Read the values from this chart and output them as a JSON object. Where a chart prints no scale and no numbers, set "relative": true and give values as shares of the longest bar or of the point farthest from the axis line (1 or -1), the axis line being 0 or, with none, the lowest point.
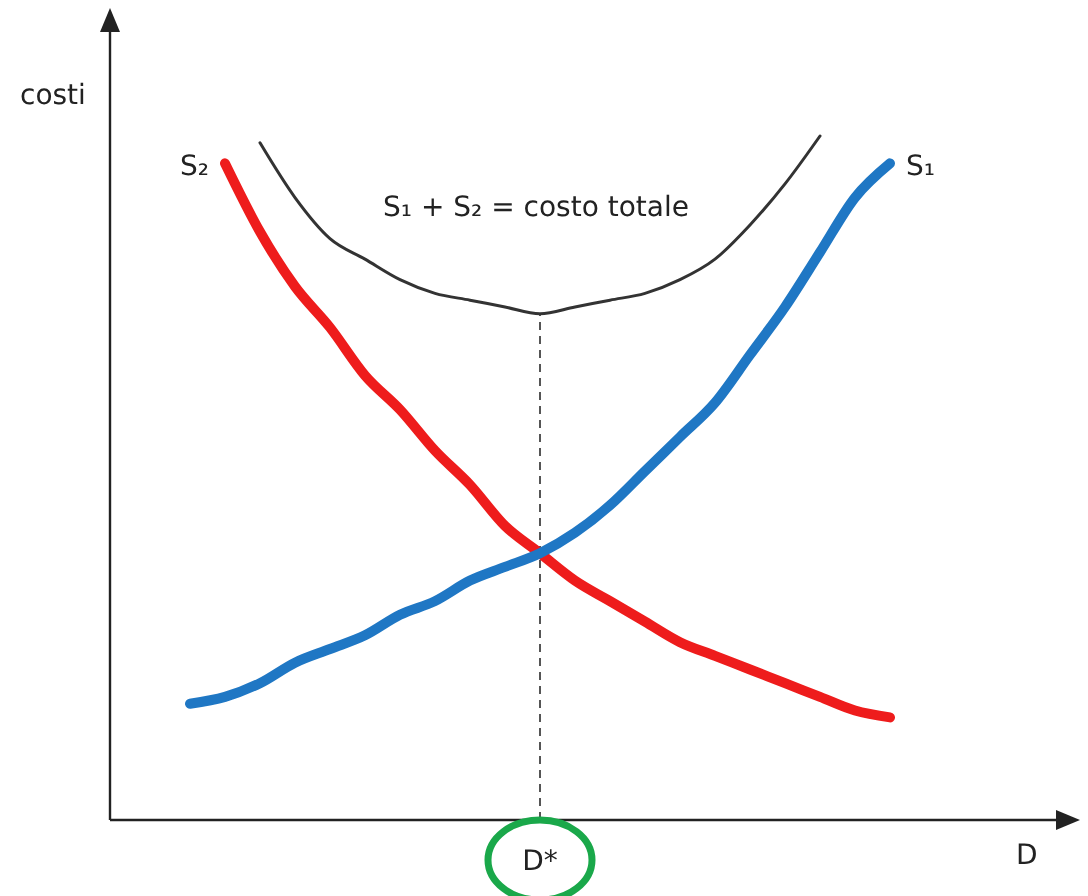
{
  "chart_data": {
    "type": "line",
    "relative": true,
    "xlabel": "D",
    "ylabel": "costi",
    "line_style": "solid",
    "marker": "none",
    "categories": [
      null,
      null,
      null,
      null,
      null,
      null,
      null,
      null,
      null,
      null,
      null,
      null,
      null,
      null,
      null,
      null,
      null,
      null,
      null,
      null,
      null
    ],
    "series": [
      {
        "name": "S₂",
        "color": "#ee1c1c",
        "values": [
          null,
          0.96,
          0.86,
          0.78,
          0.72,
          0.65,
          0.6,
          0.54,
          0.49,
          0.43,
          0.39,
          0.35,
          0.32,
          0.29,
          0.26,
          0.24,
          0.22,
          0.2,
          0.18,
          0.16,
          0.15
        ]
      },
      {
        "name": "S₁",
        "color": "#1f77c4",
        "values": [
          0.17,
          0.18,
          0.2,
          0.23,
          0.25,
          0.27,
          0.3,
          0.32,
          0.35,
          0.37,
          0.39,
          0.42,
          0.46,
          0.51,
          0.56,
          0.61,
          0.68,
          0.75,
          0.83,
          0.91,
          0.96
        ]
      },
      {
        "color": "#333333",
        "values": [
          null,
          null,
          0.99,
          0.91,
          0.85,
          0.82,
          0.79,
          0.77,
          0.76,
          0.75,
          0.74,
          0.75,
          0.76,
          0.77,
          0.79,
          0.82,
          0.87,
          0.93,
          1.0,
          null,
          null
        ]
      }
    ],
    "annotations": [
      "S₁ + S₂ = costo totale",
      "D*"
    ]
  }
}
